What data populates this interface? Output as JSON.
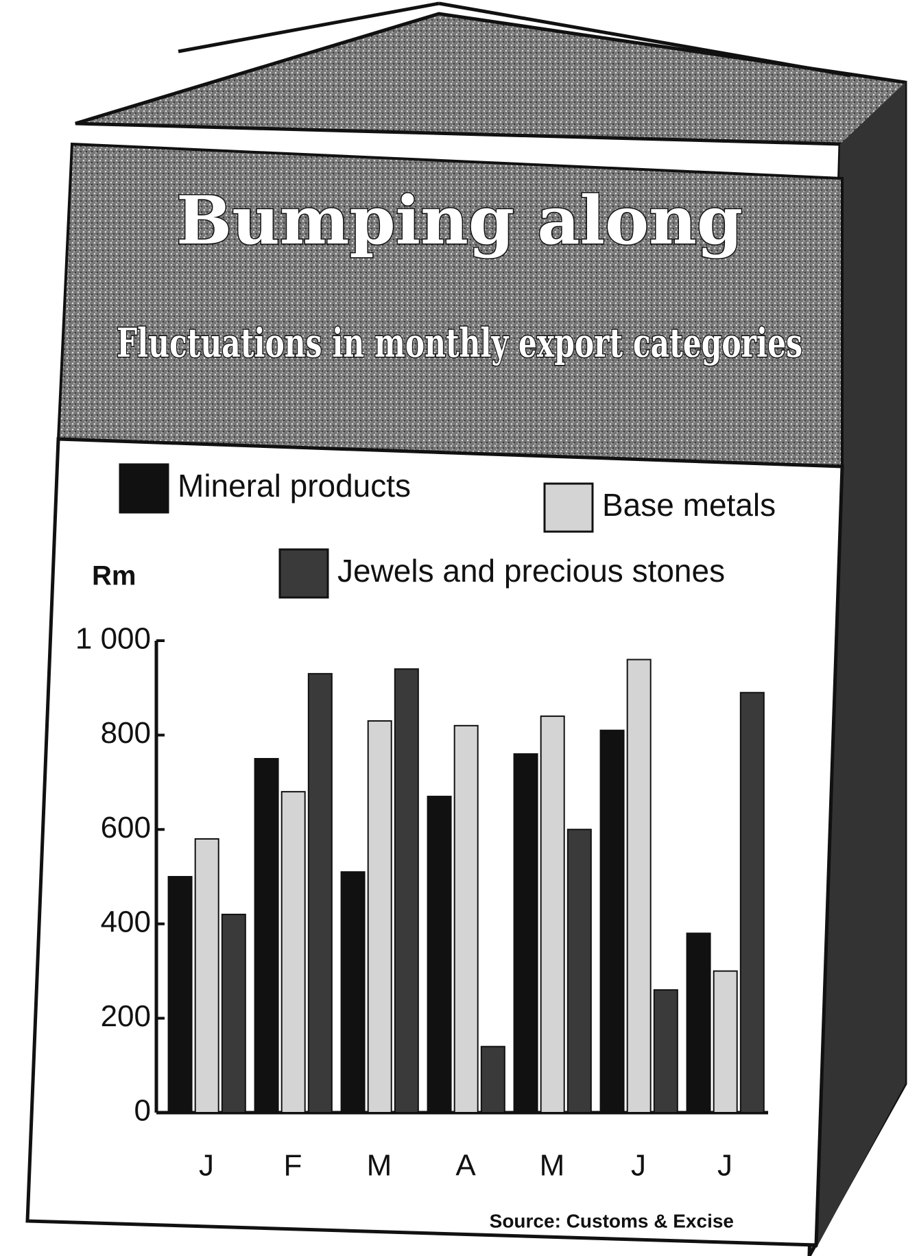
{
  "chart_data": {
    "type": "bar",
    "title": "Bumping along",
    "subtitle": "Fluctuations in monthly export categories",
    "y_label": "Rm",
    "source": "Source: Customs & Excise",
    "categories": [
      "J",
      "F",
      "M",
      "A",
      "M",
      "J",
      "J"
    ],
    "series": [
      {
        "name": "Mineral products",
        "color": "#111111",
        "values": [
          500,
          750,
          510,
          670,
          760,
          810,
          380
        ]
      },
      {
        "name": "Base metals",
        "color": "#d4d4d4",
        "values": [
          580,
          680,
          830,
          820,
          840,
          960,
          300
        ]
      },
      {
        "name": "Jewels and precious stones",
        "color": "#3a3a3a",
        "values": [
          420,
          930,
          940,
          140,
          600,
          260,
          890
        ]
      }
    ],
    "ylim": [
      0,
      1000
    ],
    "yticks": [
      0,
      200,
      400,
      600,
      800,
      {
        "value": 1000,
        "label": "1 000"
      }
    ]
  }
}
